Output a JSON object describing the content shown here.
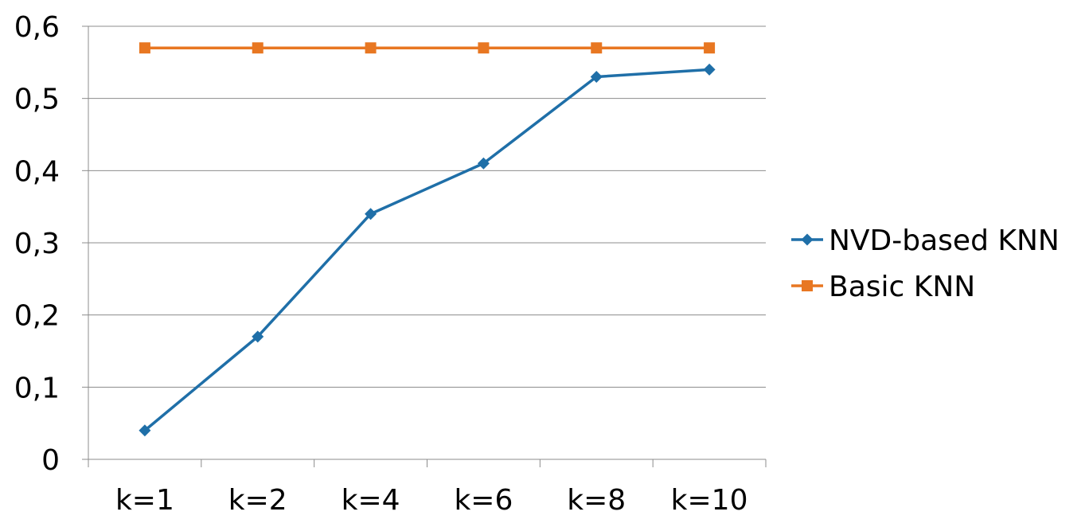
{
  "chart_data": {
    "type": "line",
    "title": "",
    "xlabel": "",
    "ylabel": "",
    "categories": [
      "k=1",
      "k=2",
      "k=4",
      "k=6",
      "k=8",
      "k=10"
    ],
    "ylim": [
      0,
      0.6
    ],
    "yticks": [
      0,
      0.1,
      0.2,
      0.3,
      0.4,
      0.5,
      0.6
    ],
    "ytick_labels": [
      "0",
      "0,1",
      "0,2",
      "0,3",
      "0,4",
      "0,5",
      "0,6"
    ],
    "grid": true,
    "legend_position": "right",
    "series": [
      {
        "name": "NVD-based KNN",
        "values": [
          0.04,
          0.17,
          0.34,
          0.41,
          0.53,
          0.54
        ],
        "color": "#1F6FA8",
        "marker": "diamond"
      },
      {
        "name": "Basic KNN",
        "values": [
          0.57,
          0.57,
          0.57,
          0.57,
          0.57,
          0.57
        ],
        "color": "#E87722",
        "marker": "square"
      }
    ]
  }
}
